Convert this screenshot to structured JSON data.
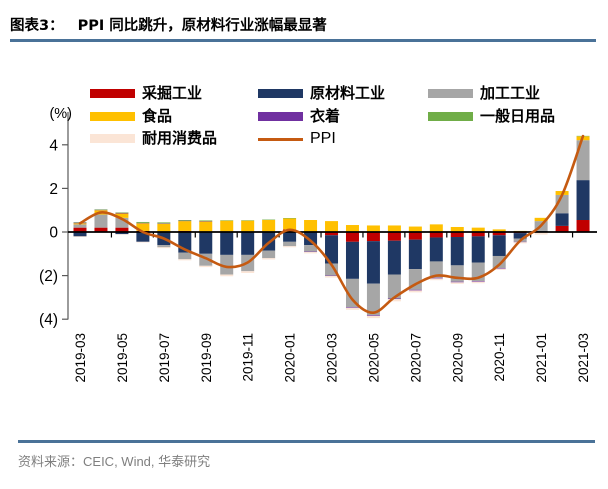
{
  "header": {
    "label": "图表3：",
    "title": "PPI 同比跳升，原材料行业涨幅最显著"
  },
  "footer": {
    "source_label": "资料来源：",
    "source_text": "CEIC, Wind,  华泰研究"
  },
  "colors": {
    "rule_blue": "#4a7298",
    "axis_gray": "#595959",
    "zero_line": "#000000",
    "footer_text": "#7f7f7f"
  },
  "legend": {
    "items": [
      {
        "label": "采掘工业",
        "color": "#C00000",
        "type": "box",
        "col": 0,
        "row": 0
      },
      {
        "label": "原材料工业",
        "color": "#1F3864",
        "type": "box",
        "col": 1,
        "row": 0
      },
      {
        "label": "加工工业",
        "color": "#A6A6A6",
        "type": "box",
        "col": 2,
        "row": 0
      },
      {
        "label": "食品",
        "color": "#FFC000",
        "type": "box",
        "col": 0,
        "row": 1
      },
      {
        "label": "衣着",
        "color": "#7030A0",
        "type": "box",
        "col": 1,
        "row": 1
      },
      {
        "label": "一般日用品",
        "color": "#70AD47",
        "type": "box",
        "col": 2,
        "row": 1
      },
      {
        "label": "耐用消费品",
        "color": "#FBE5D6",
        "type": "box",
        "col": 0,
        "row": 2
      },
      {
        "label": "PPI",
        "color": "#C55A11",
        "type": "line",
        "col": 1,
        "row": 2
      }
    ]
  },
  "chart_data": {
    "type": "bar",
    "subtype": "stacked-bars-with-line",
    "title": "PPI 同比跳升，原材料行业涨幅最显著",
    "ylabel_unit": "(%)",
    "ylim": [
      -4.6,
      5
    ],
    "grid": false,
    "legend_position": "top",
    "y_ticks": [
      {
        "value": 4,
        "label": "4"
      },
      {
        "value": 2,
        "label": "2"
      },
      {
        "value": 0,
        "label": "0"
      },
      {
        "value": -2,
        "label": "(2)"
      },
      {
        "value": -4,
        "label": "(4)"
      }
    ],
    "categories": [
      "2019-03",
      "2019-04",
      "2019-05",
      "2019-06",
      "2019-07",
      "2019-08",
      "2019-09",
      "2019-10",
      "2019-11",
      "2019-12",
      "2020-01",
      "2020-02",
      "2020-03",
      "2020-04",
      "2020-05",
      "2020-06",
      "2020-07",
      "2020-08",
      "2020-09",
      "2020-10",
      "2020-11",
      "2020-12",
      "2021-01",
      "2021-02",
      "2021-03"
    ],
    "x_axis_labels": [
      "2019-03",
      "2019-05",
      "2019-07",
      "2019-09",
      "2019-11",
      "2020-01",
      "2020-03",
      "2020-05",
      "2020-07",
      "2020-09",
      "2020-11",
      "2021-01",
      "2021-03"
    ],
    "series": [
      {
        "name": "采掘工业",
        "color": "#C00000",
        "values": [
          0.2,
          0.2,
          0.2,
          0.05,
          0.0,
          0.05,
          0.0,
          0.0,
          0.0,
          0.0,
          0.12,
          0.0,
          -0.15,
          -0.45,
          -0.42,
          -0.4,
          -0.35,
          -0.25,
          -0.23,
          -0.2,
          -0.15,
          -0.05,
          0.0,
          0.28,
          0.55
        ]
      },
      {
        "name": "原材料工业",
        "color": "#1F3864",
        "values": [
          -0.2,
          0.0,
          -0.1,
          -0.45,
          -0.6,
          -0.95,
          -1.0,
          -1.05,
          -1.05,
          -0.85,
          -0.45,
          -0.6,
          -1.3,
          -1.7,
          -1.95,
          -1.55,
          -1.35,
          -1.1,
          -1.3,
          -1.2,
          -0.95,
          -0.25,
          0.05,
          0.58,
          1.83
        ]
      },
      {
        "name": "加工工业",
        "color": "#A6A6A6",
        "values": [
          0.15,
          0.6,
          0.45,
          0.0,
          -0.1,
          -0.3,
          -0.55,
          -0.9,
          -0.75,
          -0.35,
          -0.2,
          -0.3,
          -0.55,
          -1.3,
          -1.45,
          -1.1,
          -0.95,
          -0.75,
          -0.75,
          -0.85,
          -0.55,
          -0.15,
          0.45,
          0.84,
          1.83
        ]
      },
      {
        "name": "食品",
        "color": "#FFC000",
        "values": [
          0.05,
          0.2,
          0.2,
          0.35,
          0.38,
          0.45,
          0.48,
          0.52,
          0.52,
          0.55,
          0.5,
          0.55,
          0.5,
          0.32,
          0.3,
          0.3,
          0.25,
          0.35,
          0.23,
          0.2,
          0.12,
          0.05,
          0.15,
          0.18,
          0.18
        ]
      },
      {
        "name": "衣着",
        "color": "#7030A0",
        "values": [
          0.03,
          0.02,
          0.03,
          0.02,
          0.02,
          0.02,
          0.02,
          0.0,
          0.0,
          0.0,
          0.0,
          -0.02,
          -0.02,
          -0.03,
          -0.03,
          -0.03,
          -0.03,
          -0.03,
          -0.03,
          -0.03,
          -0.03,
          -0.02,
          0.0,
          0.0,
          0.0
        ]
      },
      {
        "name": "一般日用品",
        "color": "#70AD47",
        "values": [
          0.02,
          0.02,
          0.02,
          0.04,
          0.04,
          0.03,
          0.03,
          0.02,
          0.02,
          0.02,
          0.02,
          0.0,
          0.0,
          0.0,
          0.0,
          0.0,
          0.0,
          0.0,
          0.0,
          0.0,
          0.0,
          0.0,
          0.0,
          0.0,
          0.02
        ]
      },
      {
        "name": "耐用消费品",
        "color": "#FBE5D6",
        "values": [
          -0.03,
          -0.02,
          -0.02,
          -0.03,
          -0.04,
          -0.05,
          -0.06,
          -0.08,
          -0.08,
          -0.06,
          -0.05,
          -0.06,
          -0.07,
          -0.09,
          -0.1,
          -0.1,
          -0.09,
          -0.08,
          -0.07,
          -0.07,
          -0.06,
          -0.05,
          -0.12,
          -0.05,
          -0.03
        ]
      }
    ],
    "line_series": {
      "name": "PPI",
      "color": "#C55A11",
      "values": [
        0.4,
        0.9,
        0.6,
        0.0,
        -0.3,
        -0.8,
        -1.2,
        -1.6,
        -1.4,
        -0.5,
        0.1,
        -0.4,
        -1.5,
        -3.1,
        -3.7,
        -3.0,
        -2.4,
        -2.0,
        -2.1,
        -2.1,
        -1.5,
        -0.4,
        0.3,
        1.7,
        4.4
      ]
    }
  }
}
